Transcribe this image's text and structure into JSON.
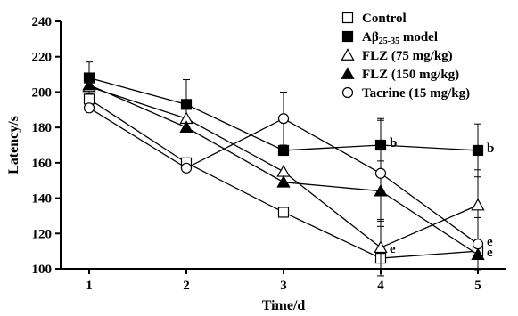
{
  "chart_data": {
    "type": "line",
    "xlabel": "Time/d",
    "ylabel": "Latency/s",
    "x": [
      1,
      2,
      3,
      4,
      5
    ],
    "xlim": [
      1,
      5
    ],
    "ylim": [
      100,
      240
    ],
    "yticks": [
      100,
      120,
      140,
      160,
      180,
      200,
      220,
      240
    ],
    "grid": false,
    "legend_position": "top-right",
    "series": [
      {
        "name": "Control",
        "marker": "open-square",
        "values": [
          196,
          160,
          132,
          106,
          110
        ],
        "errors": [
          null,
          null,
          null,
          6,
          null
        ]
      },
      {
        "name": "Aβ25-35 model",
        "name_main": "Aβ",
        "name_sub": "25-35",
        "name_rest": " model",
        "marker": "filled-square",
        "values": [
          208,
          193,
          167,
          170,
          167
        ],
        "errors": [
          9,
          14,
          null,
          15,
          15
        ]
      },
      {
        "name": "FLZ (75 mg/kg)",
        "marker": "open-triangle",
        "values": [
          203,
          185,
          155,
          112,
          136
        ],
        "errors": [
          null,
          null,
          null,
          16,
          20
        ]
      },
      {
        "name": "FLZ (150 mg/kg)",
        "marker": "filled-triangle",
        "values": [
          204,
          180,
          149,
          144,
          108
        ],
        "errors": [
          null,
          null,
          null,
          17,
          null
        ]
      },
      {
        "name": "Tacrine (15 mg/kg)",
        "marker": "open-circle",
        "values": [
          191,
          157,
          185,
          154,
          114
        ],
        "errors": [
          null,
          null,
          15,
          30,
          15
        ]
      }
    ],
    "annotations": [
      {
        "text": "b",
        "x": 4,
        "y": 170
      },
      {
        "text": "b",
        "x": 5,
        "y": 167
      },
      {
        "text": "e",
        "x": 4,
        "y": 110
      },
      {
        "text": "e",
        "x": 5,
        "y": 114
      },
      {
        "text": "e",
        "x": 5,
        "y": 108
      }
    ]
  }
}
